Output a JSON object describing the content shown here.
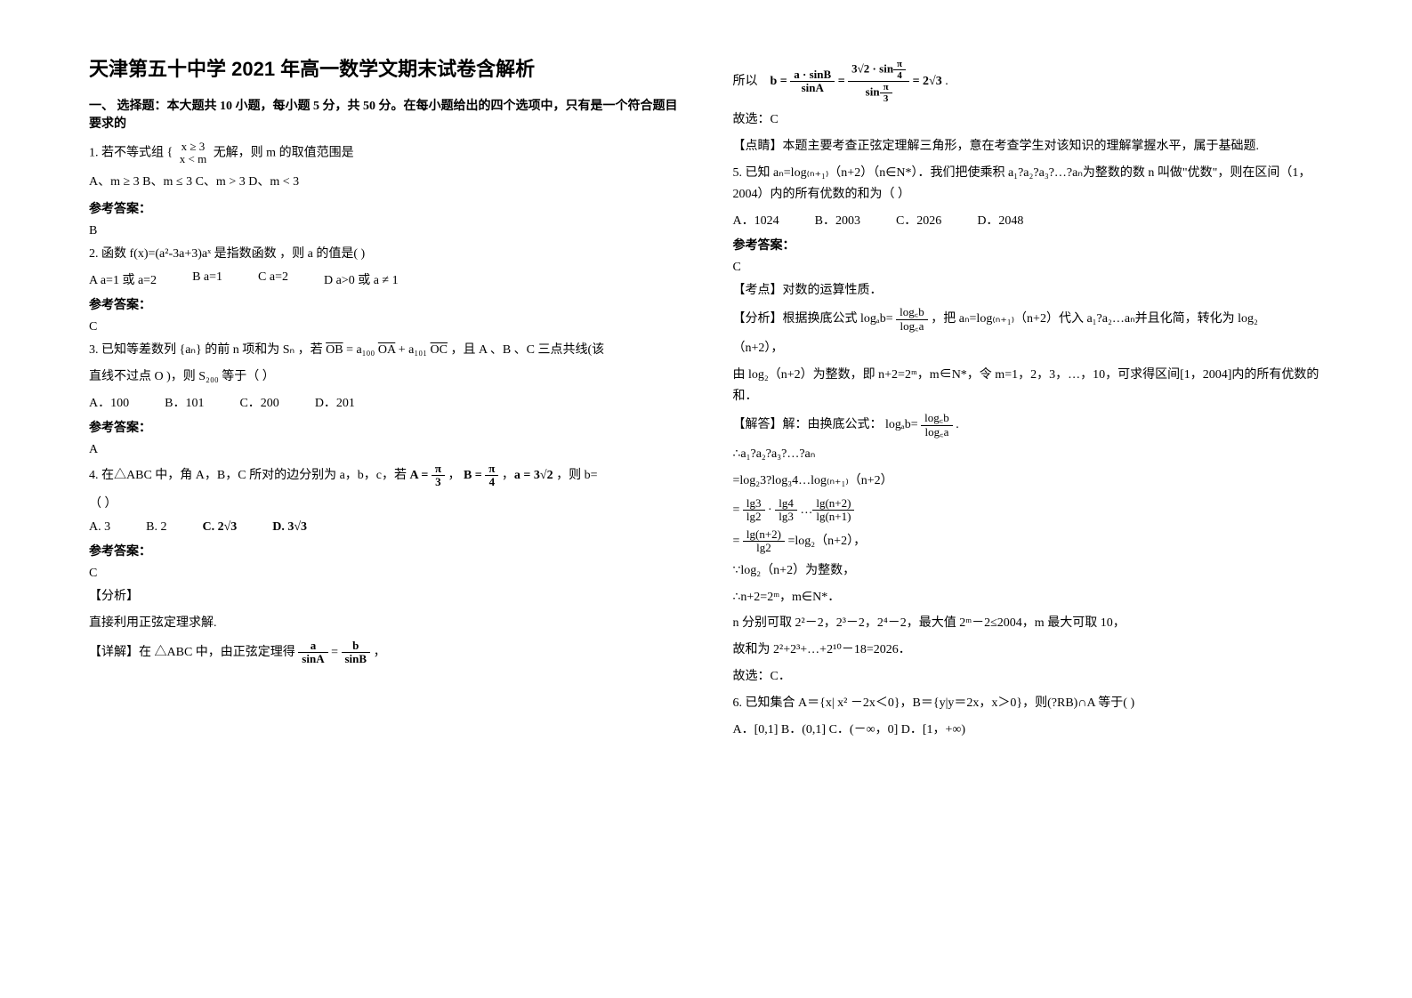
{
  "title": "天津第五十中学 2021 年高一数学文期末试卷含解析",
  "part1_header": "一、 选择题：本大题共 10 小题，每小题 5 分，共 50 分。在每小题给出的四个选项中，只有是一个符合题目要求的",
  "q1_stem_a": "1. 若不等式组",
  "q1_cond_top": "x ≥ 3",
  "q1_cond_bot": "x < m",
  "q1_stem_b": " 无解，则 m 的取值范围是",
  "q1_opts": "A、m ≥ 3  B、m ≤ 3  C、m > 3  D、m < 3",
  "ans_label": "参考答案：",
  "q1_ans": "B",
  "q2_stem": "2. 函数 f(x)=(a²-3a+3)aˣ 是指数函数 ，则 a 的值是(   )",
  "q2_opt_a": "A  a=1 或 a=2",
  "q2_opt_b": "B  a=1",
  "q2_opt_c": "C  a=2",
  "q2_opt_d": "D  a>0 或 a ≠ 1",
  "q2_ans": "C",
  "q3_stem_a": "3. 已知等差数列 {aₙ} 的前 n 项和为 Sₙ ，若 ",
  "q3_stem_ob": "OB",
  "q3_eq1": " = a₁₀₀ ",
  "q3_stem_oa": "OA",
  "q3_eq2": " + a₁₀₁ ",
  "q3_stem_oc": "OC",
  "q3_stem_b": " ，且 A 、B 、C  三点共线(该",
  "q3_stem_c": "直线不过点 O )，则 S₂₀₀ 等于（    ）",
  "q3_opt_a": "A．100",
  "q3_opt_b": "B．101",
  "q3_opt_c": "C．200",
  "q3_opt_d": "D．201",
  "q3_ans": "A",
  "q4_stem_a": "4. 在△ABC 中，角 A，B，C 所对的边分别为 a，b，c，若 ",
  "q4_A_top": "π",
  "q4_A_bot": "3",
  "q4_mid": "，",
  "q4_B_top": "π",
  "q4_B_bot": "4",
  "q4_a_val": "a = 3√2",
  "q4_stem_b": " ，则 b=",
  "q4_paren": "（          ）",
  "q4_opt_a": "A. 3",
  "q4_opt_b": "B. 2",
  "q4_opt_c": "C. 2√3",
  "q4_opt_d": "D. 3√3",
  "q4_ans": "C",
  "q4_fenxi_label": "【分析】",
  "q4_fenxi": "直接利用正弦定理求解.",
  "q4_detail_a": "【详解】在 △ABC 中，由正弦定理得 ",
  "q4_det_top_a": "a",
  "q4_det_bot_a": "sinA",
  "q4_det_eq": " = ",
  "q4_det_top_b": "b",
  "q4_det_bot_b": "sinB",
  "suoyi": "所以",
  "rb_top_lhs": "a · sinB",
  "rb_bot_lhs": "sinA",
  "rb_top_rhs_num": "3√2 · sin",
  "rb_pi4_top": "π",
  "rb_pi4_bot": "4",
  "rb_bot_rhs": "sin",
  "rb_pi3_top": "π",
  "rb_pi3_bot": "3",
  "rb_result": " = 2√3",
  "rb_gx": "故选：C",
  "rb_dianjing": "【点睛】本题主要考查正弦定理解三角形，意在考查学生对该知识的理解掌握水平，属于基础题.",
  "q5_stem": "5. 已知 aₙ=log₍ₙ₊₁₎（n+2）（n∈N*）．我们把使乘积 a₁?a₂?a₃?…?aₙ为整数的数 n 叫做\"优数\"，则在区间（1，2004）内的所有优数的和为（    ）",
  "q5_opt_a": "A．1024",
  "q5_opt_b": "B．2003",
  "q5_opt_c": "C．2026",
  "q5_opt_d": "D．2048",
  "q5_ans": "C",
  "q5_kaodian": "【考点】对数的运算性质．",
  "q5_fenxi_a": "【分析】根据换底公式 ",
  "q5_logab": "logₐb=",
  "q5_log_top": "log꜀b",
  "q5_log_bot": "log꜀a",
  "q5_fenxi_b": "，把 aₙ=log₍ₙ₊₁₎（n+2）代入 a₁?a₂…aₙ并且化简，转化为 log₂",
  "q5_fenxi_c": "（n+2），",
  "q5_fenxi_d": "由 log₂（n+2）为整数，即 n+2=2ᵐ，m∈N*，令 m=1，2，3，…，10，可求得区间[1，2004]内的所有优数的和．",
  "q5_jieda_a": "【解答】解：由换底公式：",
  "q5_line1": "∴a₁?a₂?a₃?…?aₙ",
  "q5_line2": "=log₂3?log₃4…log₍ₙ₊₁₎（n+2）",
  "q5_f1_a_top": "lg3",
  "q5_f1_a_bot": "lg2",
  "q5_f1_b_top": "lg4",
  "q5_f1_b_bot": "lg3",
  "q5_f1_c_top": "lg(n+2)",
  "q5_f1_c_bot": "lg(n+1)",
  "q5_f2_top": "lg(n+2)",
  "q5_f2_bot": "lg2",
  "q5_f2_tail": " =log₂（n+2），",
  "q5_line5": "∵log₂（n+2）为整数，",
  "q5_line6": "∴n+2=2ᵐ，m∈N*．",
  "q5_line7": "n 分别可取 2²－2，2³－2，2⁴－2，最大值 2ᵐ－2≤2004，m 最大可取 10，",
  "q5_line8": "故和为 2²+2³+…+2¹⁰－18=2026．",
  "q5_line9": "故选：C．",
  "q6_stem": "6. 已知集合 A＝{x| x² －2x＜0}，B＝{y|y＝2x，x＞0}，则(?RB)∩A 等于(    )",
  "q6_opts": "A．[0,1]  B．(0,1]    C．(－∞，0]    D．[1，+∞)",
  "b_eq": "b = "
}
